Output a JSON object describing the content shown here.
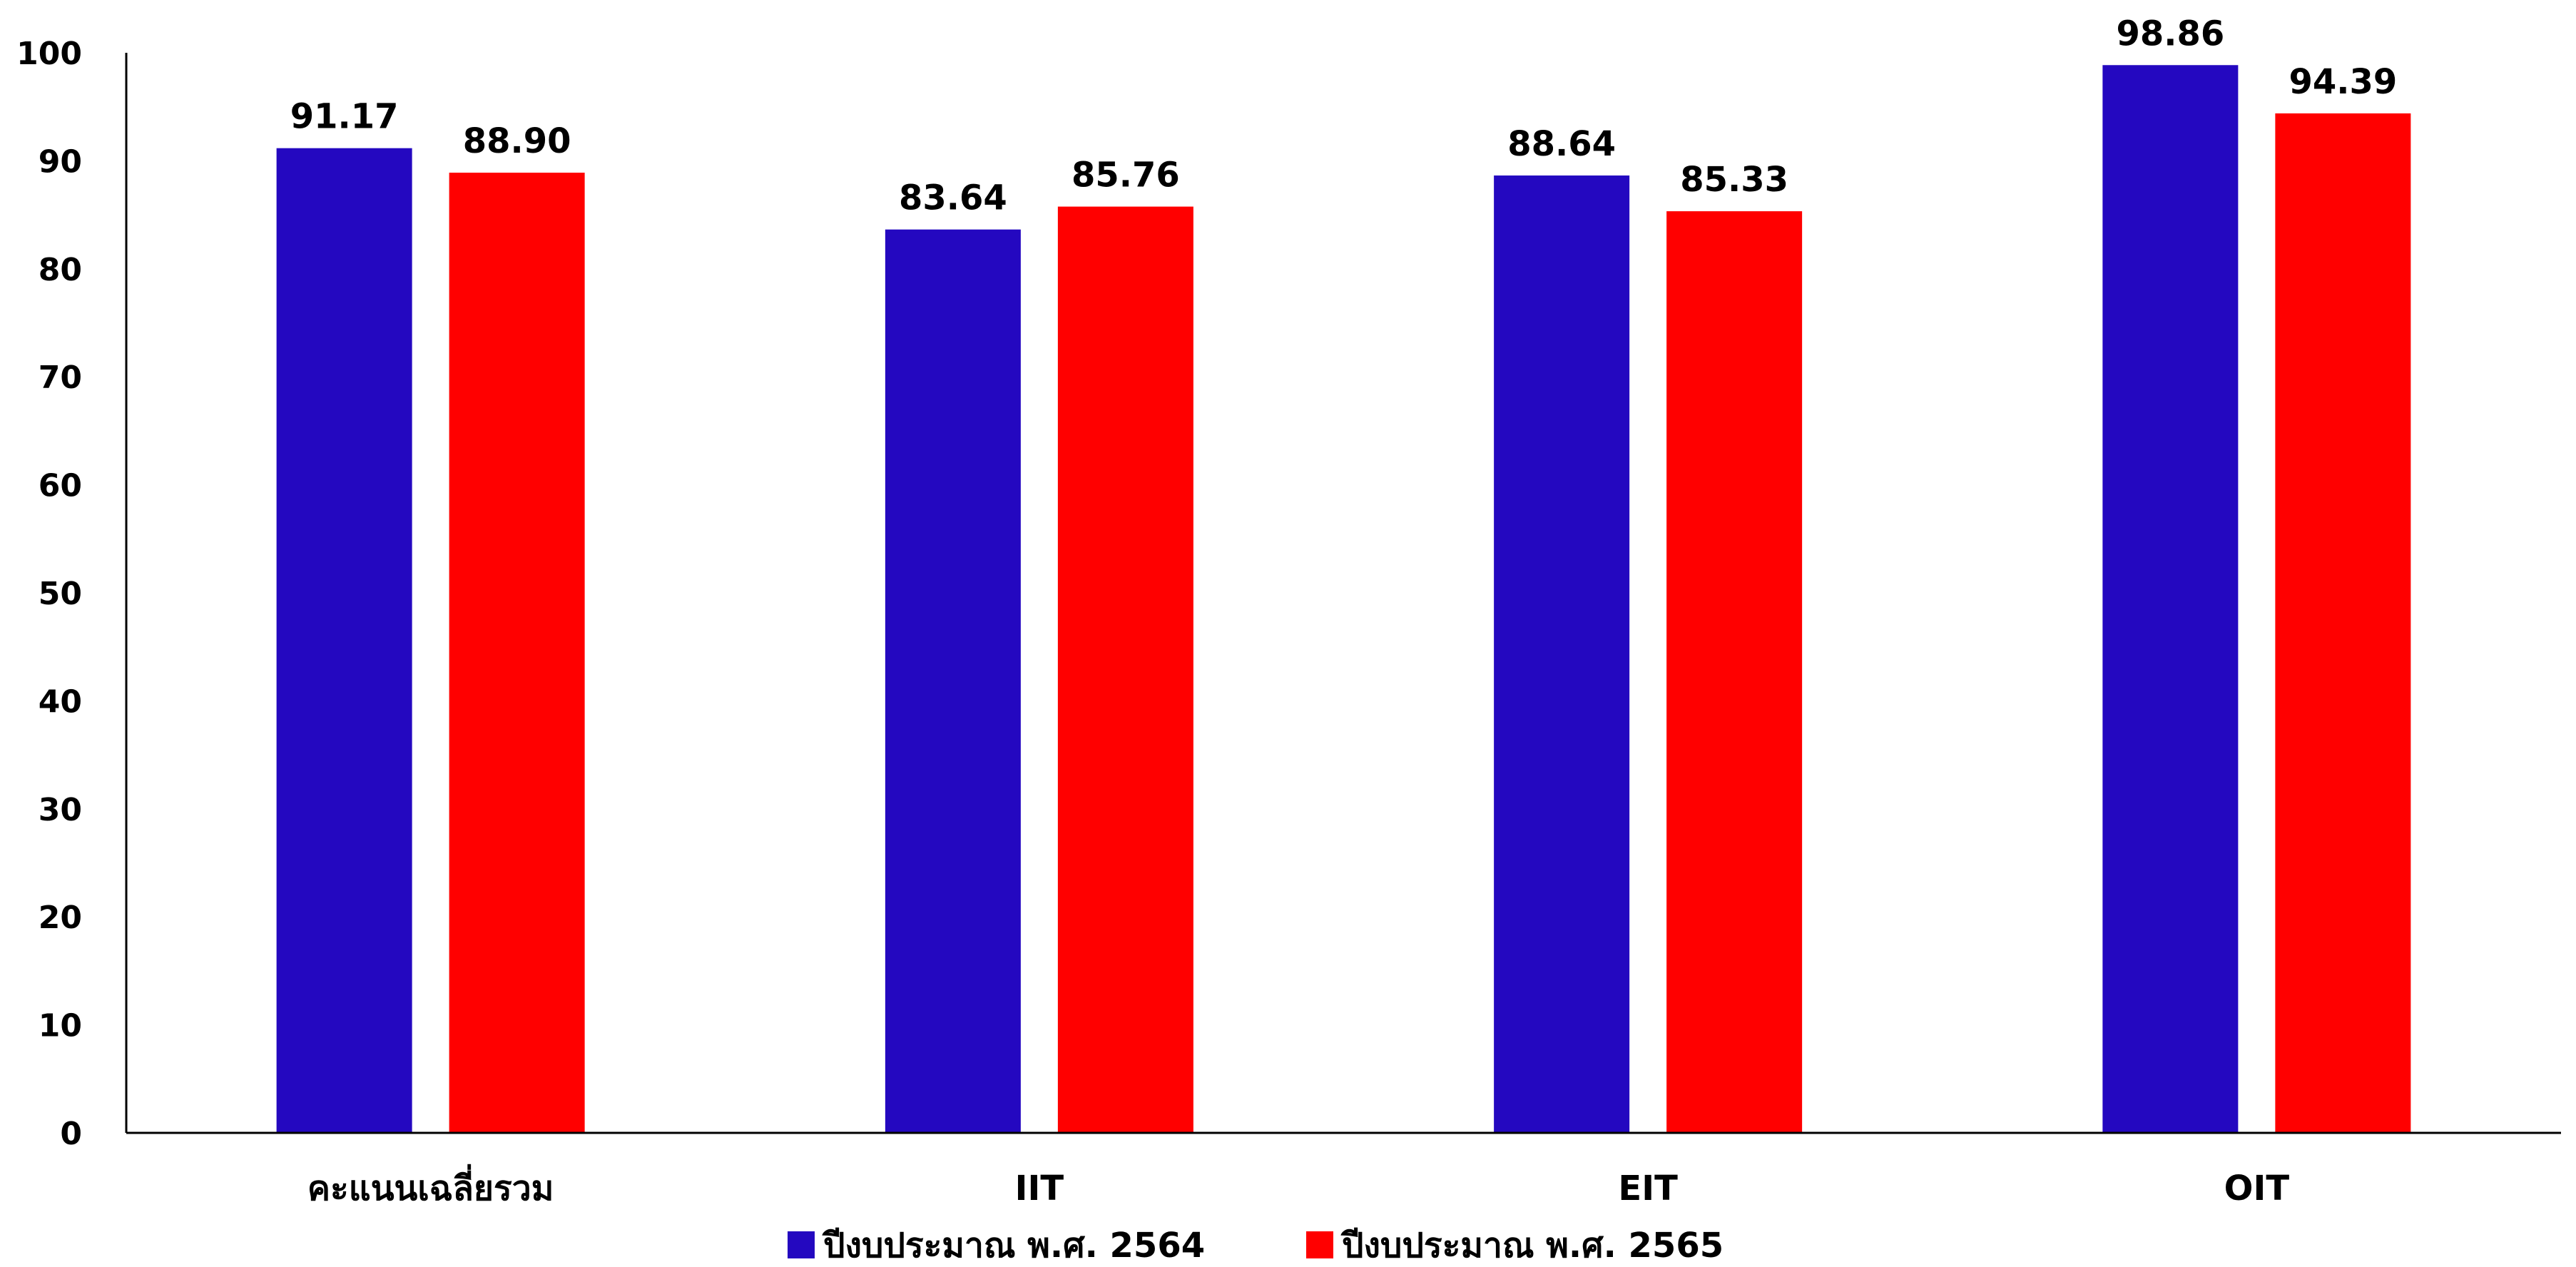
{
  "chart_data": {
    "type": "bar",
    "title": "",
    "xlabel": "",
    "ylabel": "",
    "ylim": [
      0,
      100
    ],
    "yticks": [
      0,
      10,
      20,
      30,
      40,
      50,
      60,
      70,
      80,
      90,
      100
    ],
    "categories": [
      "คะแนนเฉลี่ยรวม",
      "IIT",
      "EIT",
      "OIT"
    ],
    "series": [
      {
        "name": "ปีงบประมาณ พ.ศ. 2564",
        "color": "#2408C0",
        "values": [
          91.17,
          83.64,
          88.64,
          98.86
        ],
        "labels": [
          "91.17",
          "83.64",
          "88.64",
          "98.86"
        ]
      },
      {
        "name": "ปีงบประมาณ พ.ศ. 2565",
        "color": "#FF0000",
        "values": [
          88.9,
          85.76,
          85.33,
          94.39
        ],
        "labels": [
          "88.90",
          "85.76",
          "85.33",
          "94.39"
        ]
      }
    ],
    "grid": false,
    "legend_position": "bottom"
  }
}
